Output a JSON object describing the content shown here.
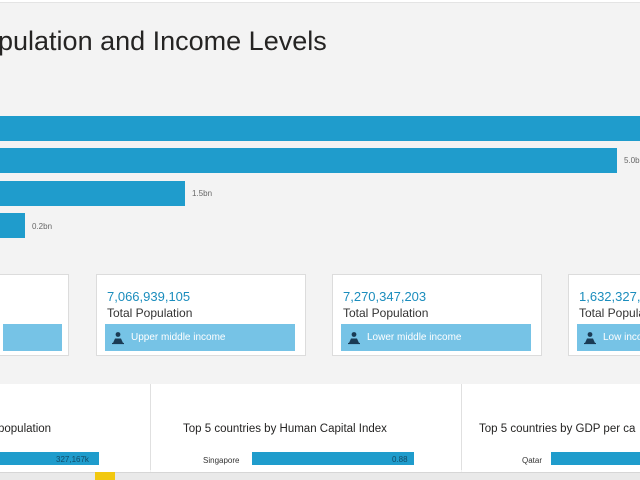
{
  "page": {
    "title": "Population and Income Levels",
    "visible_title": "pulation and Income Levels"
  },
  "bar_chart": {
    "bars": [
      {
        "value": 7.3,
        "label": ""
      },
      {
        "value": 5.0,
        "label": "5.0bn"
      },
      {
        "value": 1.5,
        "label": "1.5bn"
      },
      {
        "value": 0.2,
        "label": "0.2bn"
      }
    ]
  },
  "cards": [
    {
      "value": "",
      "label": "",
      "income": ""
    },
    {
      "value": "7,066,939,105",
      "label": "Total Population",
      "income": "Upper middle income"
    },
    {
      "value": "7,270,347,203",
      "label": "Total Population",
      "income": "Lower middle income"
    },
    {
      "value": "1,632,327,",
      "label": "Total Population",
      "income": "Low inco"
    }
  ],
  "panels": [
    {
      "title": "population",
      "row_name": "",
      "row_value": "327,167k",
      "fraction": 1.0
    },
    {
      "title": "Top 5 countries by Human Capital Index",
      "row_name": "Singapore",
      "row_value": "0.88",
      "fraction": 1.0
    },
    {
      "title": "Top 5 countries by GDP per ca",
      "row_name": "Qatar",
      "row_value": "",
      "fraction": 1.0
    }
  ],
  "colors": {
    "bar": "#1f9ccc",
    "card_button": "#76c3e6",
    "value_text": "#1b8dbd",
    "accent_tab": "#f2c80f"
  },
  "icons": {
    "card_button": "person-hand-icon"
  }
}
